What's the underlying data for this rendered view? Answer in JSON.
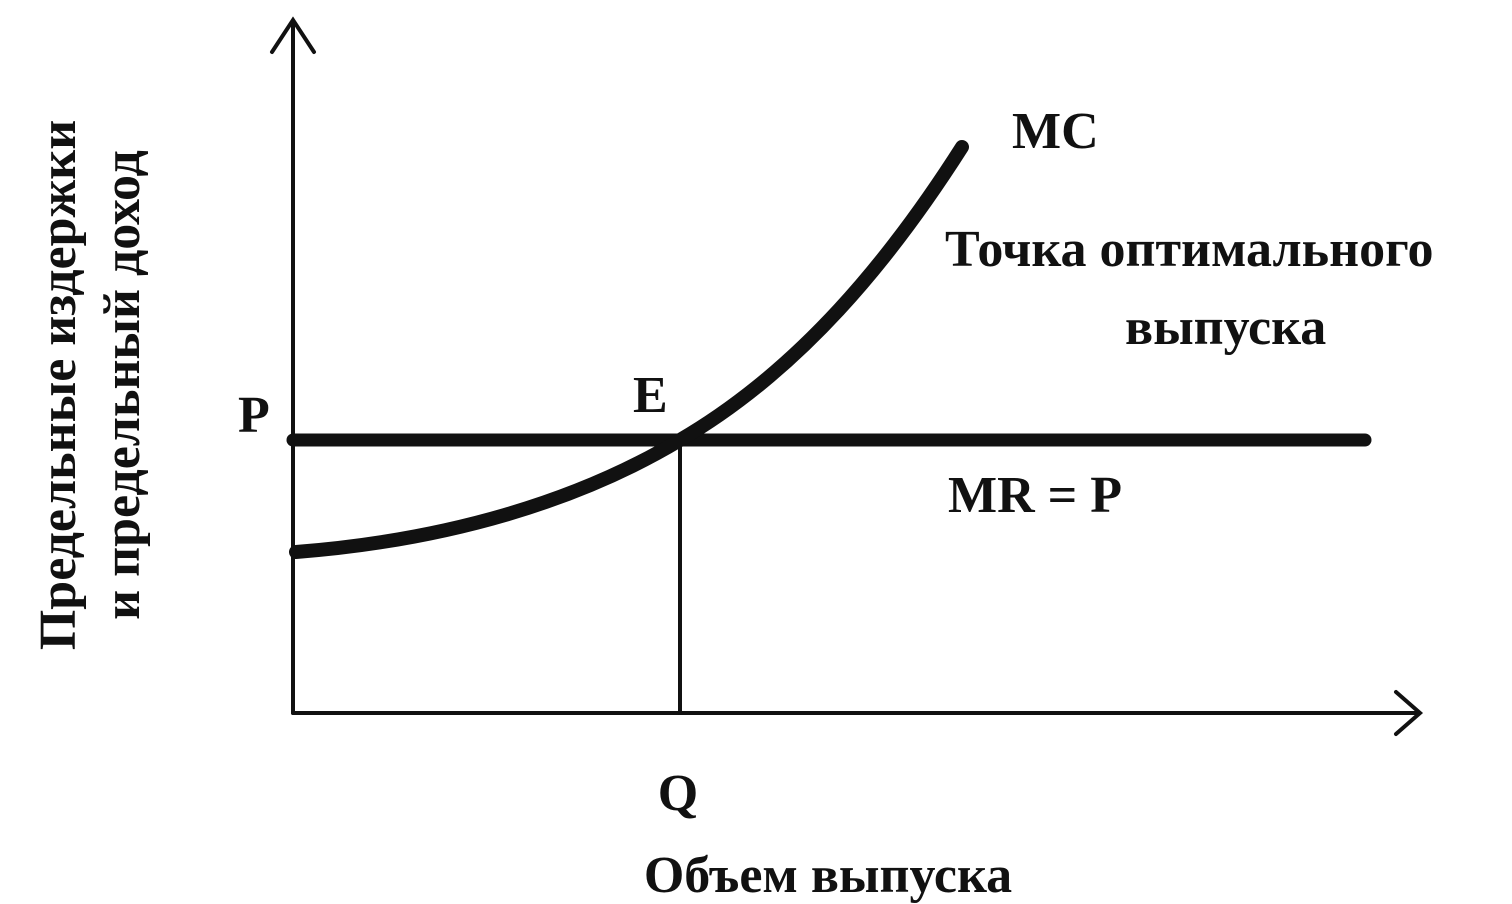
{
  "axes": {
    "y_label": [
      "Предельные издержки",
      "и предельный доход"
    ],
    "x_label": "Объем выпуска"
  },
  "labels": {
    "price": "P",
    "equilibrium": "E",
    "mc": "MC",
    "mr": "MR = P",
    "quantity": "Q",
    "annotation": [
      "Точка оптимального",
      "выпуска"
    ]
  }
}
